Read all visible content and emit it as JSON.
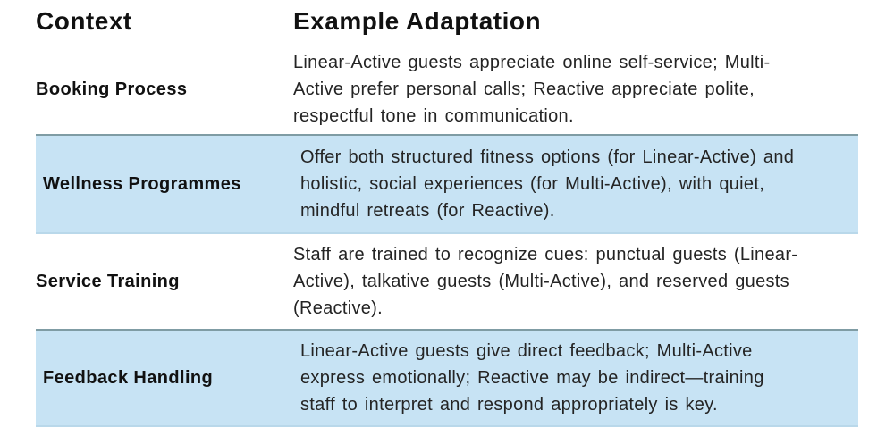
{
  "table": {
    "headers": [
      {
        "label": "Context"
      },
      {
        "label": "Example Adaptation"
      }
    ],
    "rows": [
      {
        "context": "Booking Process",
        "highlighted": false,
        "adaptation": "Linear-Active guests appreciate online self-service; Multi-Active prefer personal calls; Reactive appreciate polite, respectful tone in communication.",
        "adaptation_lines": [
          "Linear-Active guests appreciate online self-service; Multi-",
          "Active prefer personal calls; Reactive appreciate polite,",
          "respectful tone in communication."
        ]
      },
      {
        "context": "Wellness Programmes",
        "highlighted": true,
        "adaptation": "Offer both structured fitness options (for Linear-Active) and holistic, social experiences (for Multi-Active), with quiet, mindful retreats (for Reactive).",
        "adaptation_lines": [
          "Offer both structured fitness options (for Linear-Active) and",
          "holistic, social experiences (for Multi-Active), with quiet,",
          "mindful retreats (for Reactive)."
        ]
      },
      {
        "context": "Service Training",
        "highlighted": false,
        "adaptation": "Staff are trained to recognize cues: punctual guests (Linear-Active), talkative guests (Multi-Active), and reserved guests (Reactive).",
        "adaptation_lines": [
          "Staff are trained to recognize cues: punctual guests (Linear-",
          "Active), talkative guests (Multi-Active), and reserved guests",
          "(Reactive)."
        ]
      },
      {
        "context": "Feedback Handling",
        "highlighted": true,
        "adaptation": "Linear-Active guests give direct feedback; Multi-Active express emotionally; Reactive may be indirect—training staff to interpret and respond appropriately is key.",
        "adaptation_lines": [
          "Linear-Active guests give direct feedback; Multi-Active",
          "express emotionally; Reactive may be indirect—training",
          "staff to interpret and respond appropriately is key."
        ]
      }
    ],
    "colors": {
      "highlight_bg": "#c7e3f4",
      "highlight_border_top": "#7f9ca4",
      "highlight_border_bottom": "#b9d8ea",
      "heading_text": "#111111",
      "body_text": "#242424",
      "page_bg": "#ffffff"
    }
  }
}
